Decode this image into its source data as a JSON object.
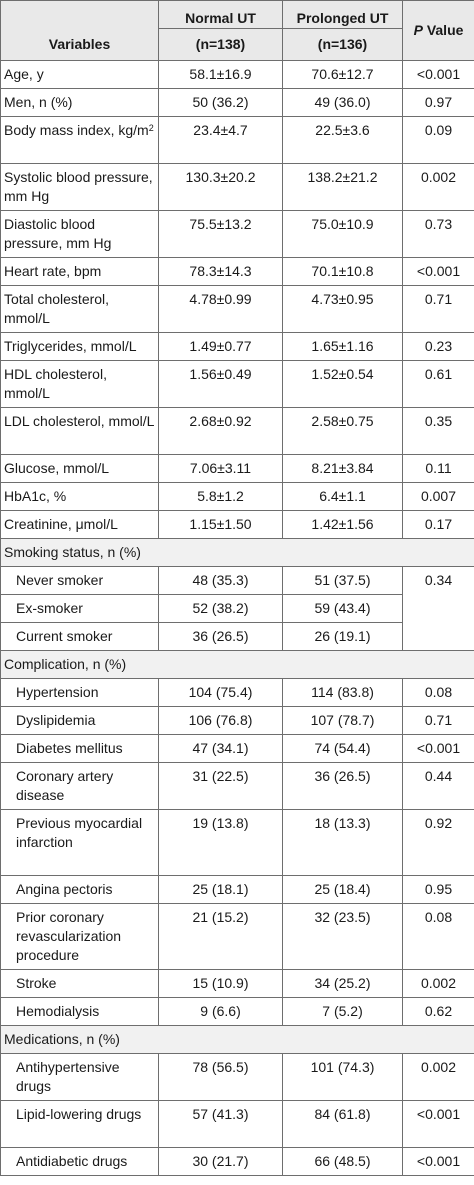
{
  "header": {
    "variables": "Variables",
    "col_normal": "Normal UT",
    "col_normal_n": "(n=138)",
    "col_prolonged": "Prolonged UT",
    "col_prolonged_n": "(n=136)",
    "col_p_italic": "P",
    "col_p_rest": " Value"
  },
  "rows": [
    {
      "label": "Age, y",
      "normal": "58.1±16.9",
      "prolonged": "70.6±12.7",
      "p": "<0.001"
    },
    {
      "label": "Men, n (%)",
      "normal": "50 (36.2)",
      "prolonged": "49 (36.0)",
      "p": "0.97"
    },
    {
      "label": "Body mass index, kg/m",
      "label_sup": "2",
      "normal": "23.4±4.7",
      "prolonged": "22.5±3.6",
      "p": "0.09"
    },
    {
      "label": "Systolic blood pressure, mm Hg",
      "normal": "130.3±20.2",
      "prolonged": "138.2±21.2",
      "p": "0.002"
    },
    {
      "label": "Diastolic blood pressure, mm Hg",
      "normal": "75.5±13.2",
      "prolonged": "75.0±10.9",
      "p": "0.73"
    },
    {
      "label": "Heart rate, bpm",
      "normal": "78.3±14.3",
      "prolonged": "70.1±10.8",
      "p": "<0.001"
    },
    {
      "label": "Total cholesterol, mmol/L",
      "normal": "4.78±0.99",
      "prolonged": "4.73±0.95",
      "p": "0.71"
    },
    {
      "label": "Triglycerides, mmol/L",
      "normal": "1.49±0.77",
      "prolonged": "1.65±1.16",
      "p": "0.23"
    },
    {
      "label": "HDL cholesterol, mmol/L",
      "normal": "1.56±0.49",
      "prolonged": "1.52±0.54",
      "p": "0.61"
    },
    {
      "label": "LDL cholesterol, mmol/L",
      "normal": "2.68±0.92",
      "prolonged": "2.58±0.75",
      "p": "0.35"
    },
    {
      "label": "Glucose, mmol/L",
      "normal": "7.06±3.11",
      "prolonged": "8.21±3.84",
      "p": "0.11"
    },
    {
      "label": "HbA1c, %",
      "normal": "5.8±1.2",
      "prolonged": "6.4±1.1",
      "p": "0.007"
    },
    {
      "label": "Creatinine, μmol/L",
      "normal": "1.15±1.50",
      "prolonged": "1.42±1.56",
      "p": "0.17"
    }
  ],
  "smoking": {
    "title": "Smoking status, n (%)",
    "p": "0.34",
    "rows": [
      {
        "label": "Never smoker",
        "normal": "48 (35.3)",
        "prolonged": "51 (37.5)"
      },
      {
        "label": "Ex-smoker",
        "normal": "52 (38.2)",
        "prolonged": "59 (43.4)"
      },
      {
        "label": "Current smoker",
        "normal": "36 (26.5)",
        "prolonged": "26 (19.1)"
      }
    ]
  },
  "complication": {
    "title": "Complication, n (%)",
    "rows": [
      {
        "label": "Hypertension",
        "normal": "104 (75.4)",
        "prolonged": "114 (83.8)",
        "p": "0.08"
      },
      {
        "label": "Dyslipidemia",
        "normal": "106 (76.8)",
        "prolonged": "107 (78.7)",
        "p": "0.71"
      },
      {
        "label": "Diabetes mellitus",
        "normal": "47 (34.1)",
        "prolonged": "74 (54.4)",
        "p": "<0.001"
      },
      {
        "label": "Coronary artery disease",
        "normal": "31 (22.5)",
        "prolonged": "36 (26.5)",
        "p": "0.44"
      },
      {
        "label": "Previous myocardial infarction",
        "normal": "19 (13.8)",
        "prolonged": "18 (13.3)",
        "p": "0.92"
      },
      {
        "label": "Angina pectoris",
        "normal": "25 (18.1)",
        "prolonged": "25 (18.4)",
        "p": "0.95"
      },
      {
        "label": "Prior coronary revascularization procedure",
        "normal": "21 (15.2)",
        "prolonged": "32 (23.5)",
        "p": "0.08"
      },
      {
        "label": "Stroke",
        "normal": "15 (10.9)",
        "prolonged": "34 (25.2)",
        "p": "0.002"
      },
      {
        "label": "Hemodialysis",
        "normal": "9 (6.6)",
        "prolonged": "7 (5.2)",
        "p": "0.62"
      }
    ]
  },
  "medications": {
    "title": "Medications, n (%)",
    "rows": [
      {
        "label": "Antihypertensive drugs",
        "normal": "78 (56.5)",
        "prolonged": "101 (74.3)",
        "p": "0.002"
      },
      {
        "label": "Lipid-lowering drugs",
        "normal": "57 (41.3)",
        "prolonged": "84 (61.8)",
        "p": "<0.001"
      },
      {
        "label": "Antidiabetic drugs",
        "normal": "30 (21.7)",
        "prolonged": "66 (48.5)",
        "p": "<0.001"
      }
    ]
  }
}
